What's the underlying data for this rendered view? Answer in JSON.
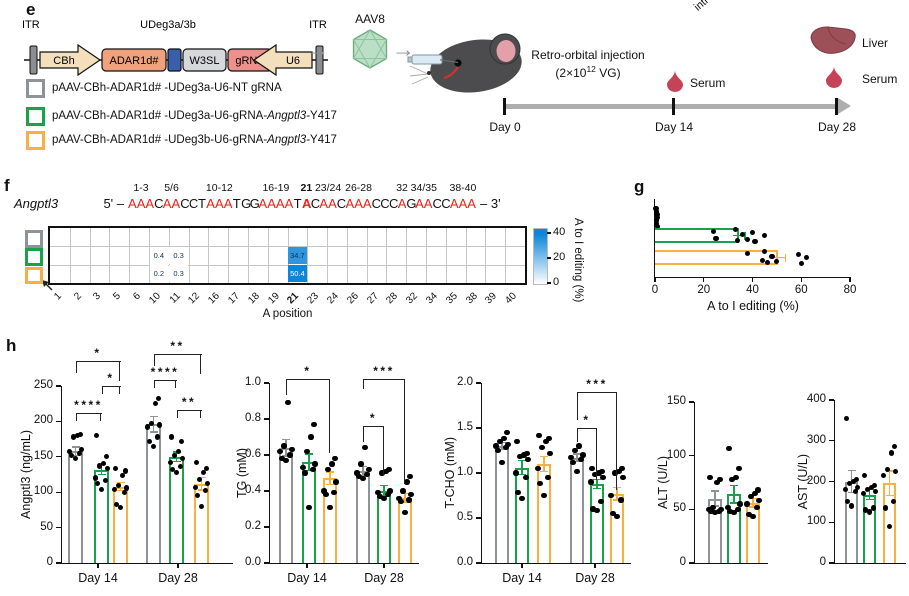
{
  "panel_e": {
    "label": "e",
    "construct": {
      "itr_left": "ITR",
      "itr_right": "ITR",
      "udeg_label": "UDeg3a/3b",
      "cbh": "CBh",
      "adar": "ADAR1d#",
      "w3sl": "W3SL",
      "grna": "gRNA",
      "u6": "U6"
    },
    "aav_label": "AAV8",
    "corner_text": "intr",
    "injection": {
      "line1": "Retro-orbital injection",
      "base": "(2×10",
      "sup": "12",
      "rest": " VG)"
    },
    "timeline": {
      "day0": "Day 0",
      "day14": "Day 14",
      "day28": "Day 28",
      "serum_day14": "Serum",
      "serum_day28": "Serum",
      "liver": "Liver"
    },
    "legend": [
      {
        "color": "#8F9397",
        "pre": "pAAV-CBh-ADAR1d# -UDeg3a-U6-NT gRNA",
        "italic": "",
        "post": ""
      },
      {
        "color": "#18A24C",
        "pre": "pAAV-CBh-ADAR1d# -UDeg3a-U6-gRNA-",
        "italic": "Angptl3",
        "post": "-Y417"
      },
      {
        "color": "#F8B041",
        "pre": "pAAV-CBh-ADAR1d# -UDeg3b-U6-gRNA-",
        "italic": "Angptl3",
        "post": "-Y417"
      }
    ]
  },
  "panel_f": {
    "label": "f",
    "gene": "Angptl3",
    "seq_prefix": "5' –",
    "seq_suffix": "– 3'"
  },
  "panel_g": {
    "label": "g"
  },
  "panel_h": {
    "label": "h"
  },
  "chart_data": [
    {
      "id": "f-heatmap",
      "type": "heatmap",
      "sequence": "AAACAACCTAAATGGAAAATACAACAAACCCAGAACCAAA",
      "red_base": "A",
      "bold_position": 21,
      "pos_labels": [
        {
          "text": "1-3",
          "center": 2
        },
        {
          "text": "5/6",
          "center": 5.5
        },
        {
          "text": "10-12",
          "center": 11
        },
        {
          "text": "16-19",
          "center": 17.5
        },
        {
          "text": "21",
          "center": 21,
          "bold": true
        },
        {
          "text": "23/24",
          "center": 23.5
        },
        {
          "text": "26-28",
          "center": 27
        },
        {
          "text": "32",
          "center": 32
        },
        {
          "text": "34/35",
          "center": 34.5
        },
        {
          "text": "38-40",
          "center": 39
        }
      ],
      "columns": [
        1,
        2,
        3,
        5,
        6,
        10,
        11,
        12,
        16,
        17,
        18,
        19,
        21,
        23,
        24,
        26,
        27,
        28,
        32,
        34,
        35,
        38,
        39,
        40
      ],
      "bold_column": 21,
      "rows": [
        {
          "group": "NT gRNA",
          "color": "#8F9397",
          "values": {}
        },
        {
          "group": "UDeg3a",
          "color": "#18A24C",
          "values": {
            "10": "0.4",
            "11": "0.3",
            "21": "34.7"
          }
        },
        {
          "group": "UDeg3b",
          "color": "#F8B041",
          "values": {
            "10": "0.2",
            "11": "0.3",
            "21": "50.4"
          }
        }
      ],
      "xlabel": "A position",
      "colorbar": {
        "label": "A to I editing (%)",
        "ticks": [
          "40",
          "20",
          "0"
        ],
        "max": 40
      }
    },
    {
      "id": "g-editing",
      "type": "bar",
      "orientation": "horizontal",
      "xlabel": "A to I editing (%)",
      "xlim": [
        0,
        80
      ],
      "xticks": [
        "0",
        "20",
        "40",
        "60",
        "80"
      ],
      "bars": [
        {
          "group": "NT gRNA",
          "color": "#8F9397",
          "value": 0.8,
          "err": 0.4,
          "dots": [
            0.4,
            0.6,
            0.8,
            1.0,
            0.7,
            0.5,
            0.9
          ]
        },
        {
          "group": "UDeg3a",
          "color": "#18A24C",
          "value": 34.5,
          "err": 2.5,
          "dots": [
            24,
            25,
            33,
            34,
            36,
            38,
            40,
            41,
            45
          ]
        },
        {
          "group": "UDeg3b",
          "color": "#F8B041",
          "value": 50.5,
          "err": 3,
          "dots": [
            38,
            44,
            45,
            46,
            48,
            50,
            59,
            60,
            62
          ]
        }
      ]
    },
    {
      "id": "h-angptl3",
      "type": "bar",
      "ylabel": "Angptl3 (ng/mL)",
      "ylim": [
        0,
        250
      ],
      "yticks": [
        "0",
        "50",
        "100",
        "150",
        "200",
        "250"
      ],
      "groups": [
        "Day 14",
        "Day 28"
      ],
      "bars": [
        {
          "group": "Day 14",
          "series": "NT gRNA",
          "color": "#8F9397",
          "value": 158,
          "err": 6,
          "dots": [
            148,
            152,
            155,
            157,
            160,
            178,
            180,
            181
          ]
        },
        {
          "group": "Day 14",
          "series": "UDeg3a",
          "color": "#18A24C",
          "value": 132,
          "err": 7,
          "dots": [
            104,
            112,
            117,
            120,
            133,
            137,
            140,
            150,
            180
          ]
        },
        {
          "group": "Day 14",
          "series": "UDeg3b",
          "color": "#F8B041",
          "value": 108,
          "err": 6,
          "dots": [
            78,
            83,
            100,
            104,
            106,
            110,
            124,
            130,
            134
          ]
        },
        {
          "group": "Day 28",
          "series": "NT gRNA",
          "color": "#8F9397",
          "value": 196,
          "err": 11,
          "dots": [
            165,
            172,
            178,
            192,
            195,
            197,
            225,
            232
          ]
        },
        {
          "group": "Day 28",
          "series": "UDeg3a",
          "color": "#18A24C",
          "value": 150,
          "err": 7,
          "dots": [
            128,
            132,
            136,
            142,
            148,
            152,
            158,
            172,
            178
          ]
        },
        {
          "group": "Day 28",
          "series": "UDeg3b",
          "color": "#F8B041",
          "value": 112,
          "err": 9,
          "dots": [
            80,
            95,
            102,
            107,
            112,
            118,
            128,
            134,
            142
          ]
        }
      ],
      "sig": [
        {
          "from": 0,
          "to": 1,
          "y": 212,
          "label": "****",
          "legs": [
            8,
            8
          ]
        },
        {
          "from": 0,
          "to": 2,
          "y": 285,
          "label": "*",
          "legs": [
            12,
            20
          ]
        },
        {
          "from": 1,
          "to": 2,
          "y": 250,
          "label": "*",
          "legs": [
            8,
            8
          ]
        },
        {
          "from": 3,
          "to": 4,
          "y": 258,
          "label": "****",
          "legs": [
            8,
            8
          ]
        },
        {
          "from": 3,
          "to": 5,
          "y": 295,
          "label": "**",
          "legs": [
            12,
            20
          ]
        },
        {
          "from": 4,
          "to": 5,
          "y": 216,
          "label": "**",
          "legs": [
            8,
            8
          ]
        }
      ]
    },
    {
      "id": "h-tg",
      "type": "bar",
      "ylabel": "TG (mM)",
      "ylim": [
        0,
        1.0
      ],
      "yticks": [
        "0.0",
        "0.2",
        "0.4",
        "0.6",
        "0.8",
        "1.0"
      ],
      "groups": [
        "Day 14",
        "Day 28"
      ],
      "bars": [
        {
          "group": "Day 14",
          "series": "NT gRNA",
          "color": "#8F9397",
          "value": 0.64,
          "err": 0.045,
          "dots": [
            0.57,
            0.58,
            0.6,
            0.62,
            0.63,
            0.65,
            0.89
          ]
        },
        {
          "group": "Day 14",
          "series": "UDeg3a",
          "color": "#18A24C",
          "value": 0.56,
          "err": 0.045,
          "dots": [
            0.31,
            0.5,
            0.52,
            0.53,
            0.55,
            0.62,
            0.7,
            0.77
          ]
        },
        {
          "group": "Day 14",
          "series": "UDeg3b",
          "color": "#F8B041",
          "value": 0.47,
          "err": 0.035,
          "dots": [
            0.31,
            0.38,
            0.39,
            0.4,
            0.45,
            0.52,
            0.55,
            0.58
          ]
        },
        {
          "group": "Day 28",
          "series": "NT gRNA",
          "color": "#8F9397",
          "value": 0.51,
          "err": 0.025,
          "dots": [
            0.47,
            0.48,
            0.49,
            0.5,
            0.52,
            0.55,
            0.64
          ]
        },
        {
          "group": "Day 28",
          "series": "UDeg3a",
          "color": "#18A24C",
          "value": 0.4,
          "err": 0.03,
          "dots": [
            0.36,
            0.37,
            0.38,
            0.39,
            0.4,
            0.5,
            0.51,
            0.52
          ]
        },
        {
          "group": "Day 28",
          "series": "UDeg3b",
          "color": "#F8B041",
          "value": 0.36,
          "err": 0.025,
          "dots": [
            0.28,
            0.34,
            0.35,
            0.36,
            0.38,
            0.4,
            0.45,
            0.48
          ]
        }
      ],
      "sig": [
        {
          "from": 0,
          "to": 2,
          "y": 1.02,
          "label": "*",
          "legs": [
            16,
            74
          ]
        },
        {
          "from": 3,
          "to": 4,
          "y": 0.76,
          "label": "*",
          "legs": [
            16,
            49
          ]
        },
        {
          "from": 3,
          "to": 5,
          "y": 1.02,
          "label": "***",
          "legs": [
            10,
            105
          ]
        }
      ]
    },
    {
      "id": "h-tcho",
      "type": "bar",
      "ylabel": "T-CHO (mM)",
      "ylim": [
        0,
        2.0
      ],
      "yticks": [
        "0.0",
        "0.5",
        "1.0",
        "1.5",
        "2.0"
      ],
      "groups": [
        "Day 14",
        "Day 28"
      ],
      "bars": [
        {
          "group": "Day 14",
          "series": "NT gRNA",
          "color": "#8F9397",
          "value": 1.3,
          "err": 0.04,
          "dots": [
            1.12,
            1.25,
            1.28,
            1.3,
            1.32,
            1.35,
            1.38,
            1.45
          ]
        },
        {
          "group": "Day 14",
          "series": "UDeg3a",
          "color": "#18A24C",
          "value": 1.06,
          "err": 0.08,
          "dots": [
            0.72,
            0.78,
            0.95,
            1.0,
            1.15,
            1.18,
            1.2,
            1.22,
            1.35
          ]
        },
        {
          "group": "Day 14",
          "series": "UDeg3b",
          "color": "#F8B041",
          "value": 1.1,
          "err": 0.08,
          "dots": [
            0.75,
            0.88,
            0.95,
            1.05,
            1.22,
            1.28,
            1.35,
            1.38,
            1.42
          ]
        },
        {
          "group": "Day 28",
          "series": "NT gRNA",
          "color": "#8F9397",
          "value": 1.17,
          "err": 0.04,
          "dots": [
            1.02,
            1.12,
            1.15,
            1.17,
            1.2,
            1.25,
            1.3
          ]
        },
        {
          "group": "Day 28",
          "series": "UDeg3a",
          "color": "#18A24C",
          "value": 0.88,
          "err": 0.05,
          "dots": [
            0.58,
            0.6,
            0.68,
            0.9,
            0.95,
            0.98,
            1.0,
            1.02,
            1.05
          ]
        },
        {
          "group": "Day 28",
          "series": "UDeg3b",
          "color": "#F8B041",
          "value": 0.77,
          "err": 0.07,
          "dots": [
            0.52,
            0.55,
            0.7,
            0.75,
            0.95,
            1.0,
            1.02,
            1.05
          ]
        }
      ],
      "sig": [
        {
          "from": 3,
          "to": 4,
          "y": 1.5,
          "label": "*",
          "legs": [
            14,
            52
          ]
        },
        {
          "from": 3,
          "to": 5,
          "y": 1.9,
          "label": "***",
          "legs": [
            28,
            98
          ]
        }
      ]
    },
    {
      "id": "h-alt",
      "type": "bar",
      "ylabel": "ALT (U/L)",
      "ylim": [
        0,
        150
      ],
      "yticks": [
        "0",
        "50",
        "100",
        "150"
      ],
      "groups": [],
      "bars": [
        {
          "group": "",
          "series": "NT gRNA",
          "color": "#8F9397",
          "value": 60,
          "err": 7,
          "dots": [
            47,
            48,
            48,
            50,
            50,
            52,
            75,
            78,
            80
          ]
        },
        {
          "group": "",
          "series": "UDeg3a",
          "color": "#18A24C",
          "value": 64,
          "err": 8,
          "dots": [
            47,
            48,
            50,
            52,
            55,
            78,
            80,
            88,
            107
          ]
        },
        {
          "group": "",
          "series": "UDeg3b",
          "color": "#F8B041",
          "value": 56,
          "err": 4,
          "dots": [
            43,
            45,
            52,
            55,
            58,
            62,
            65,
            68
          ]
        }
      ],
      "sig": []
    },
    {
      "id": "h-ast",
      "type": "bar",
      "ylabel": "AST (U/L)",
      "ylim": [
        0,
        400
      ],
      "yticks": [
        "0",
        "100",
        "200",
        "300",
        "400"
      ],
      "groups": [],
      "bars": [
        {
          "group": "",
          "series": "NT gRNA",
          "color": "#8F9397",
          "value": 200,
          "err": 27,
          "dots": [
            140,
            150,
            175,
            180,
            185,
            195,
            200,
            205,
            355
          ]
        },
        {
          "group": "",
          "series": "UDeg3a",
          "color": "#18A24C",
          "value": 168,
          "err": 12,
          "dots": [
            125,
            130,
            135,
            170,
            175,
            180,
            185,
            190,
            215
          ]
        },
        {
          "group": "",
          "series": "UDeg3b",
          "color": "#F8B041",
          "value": 196,
          "err": 30,
          "dots": [
            90,
            135,
            150,
            215,
            225,
            230,
            270,
            285
          ]
        }
      ],
      "sig": []
    }
  ]
}
